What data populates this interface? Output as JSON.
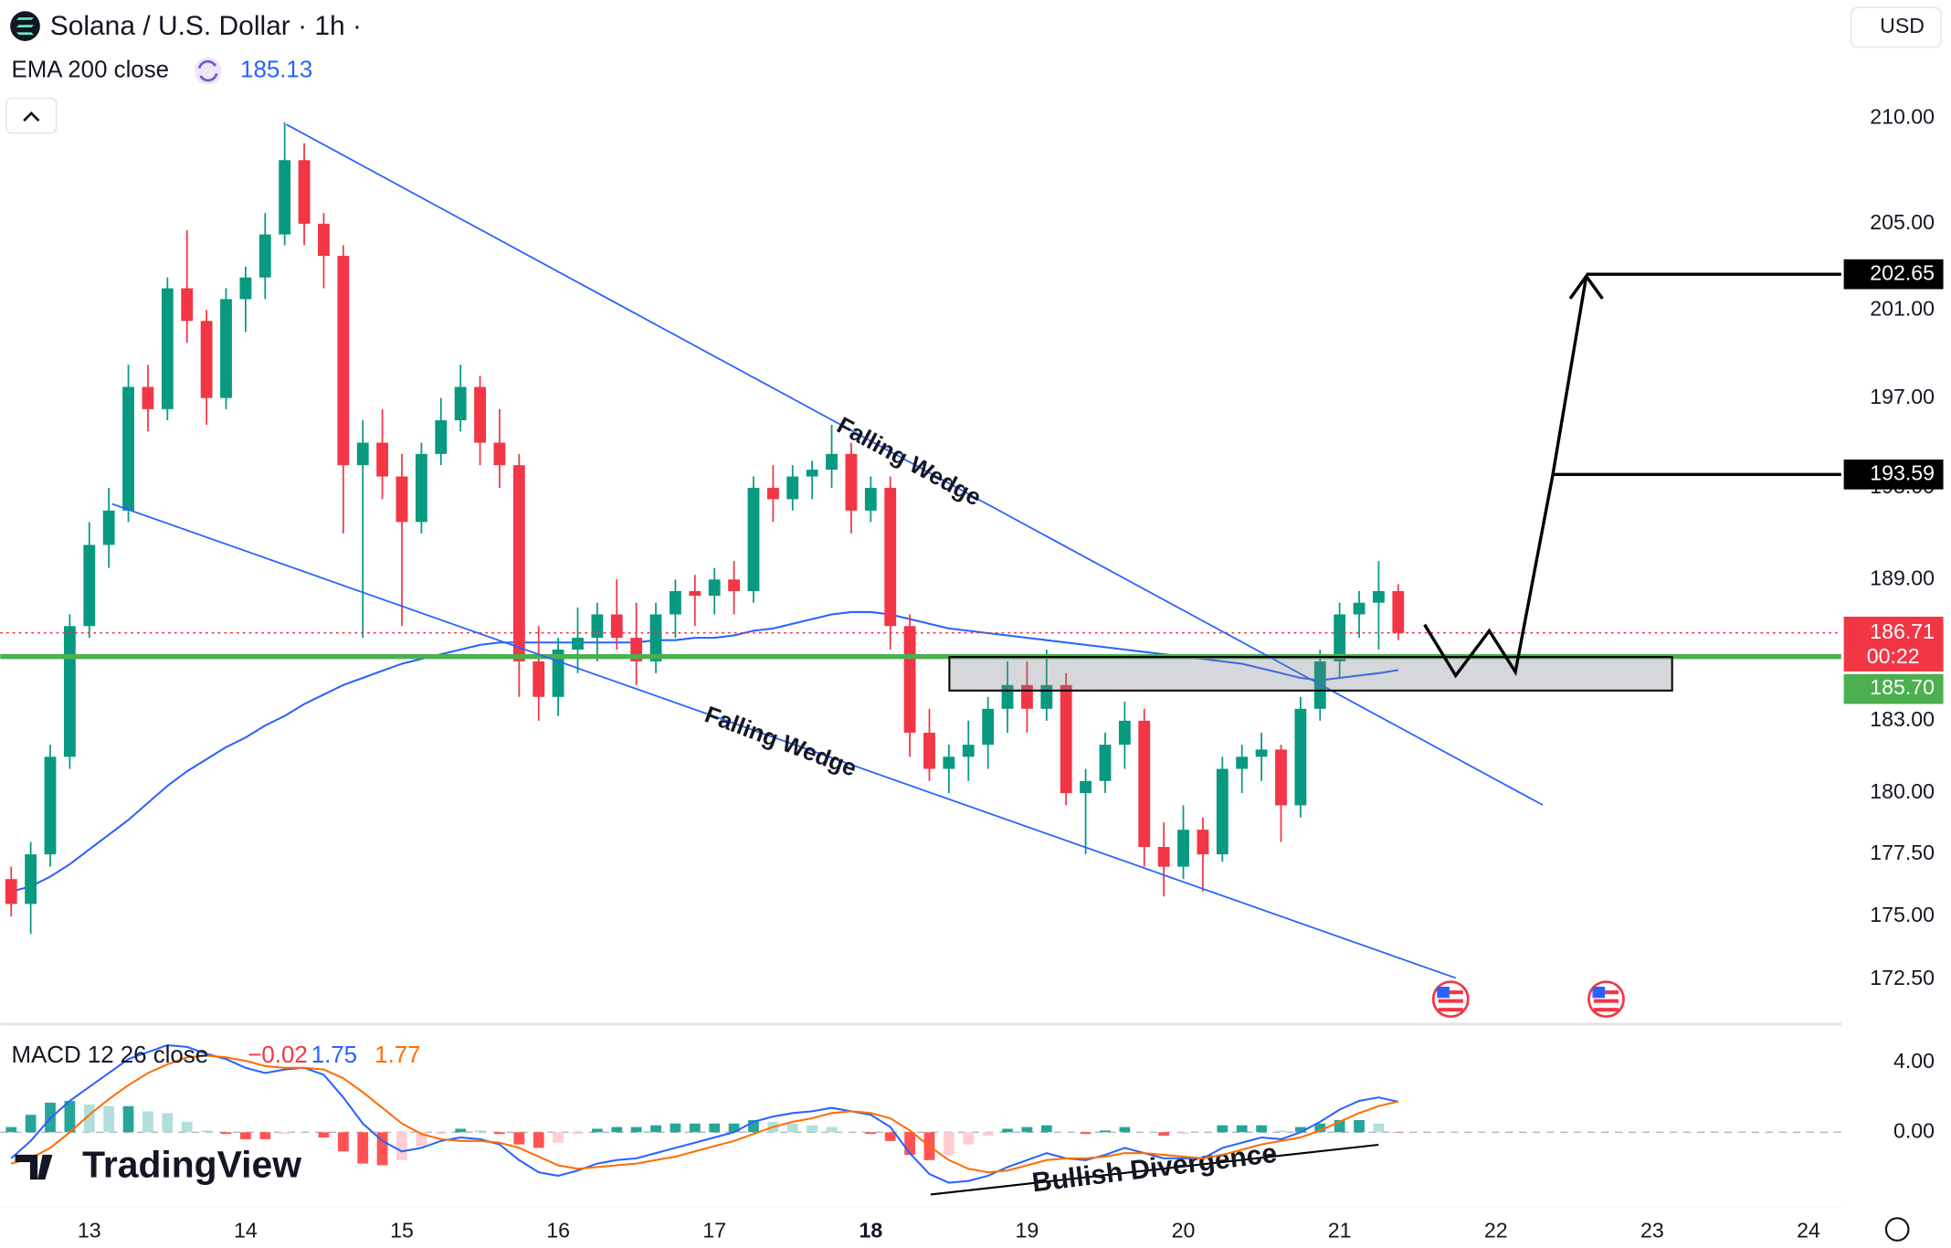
{
  "title": "Solana / U.S. Dollar · 1h ·",
  "currency": "USD",
  "watermark": "TradingView",
  "chart_data": [
    {
      "type": "candlestick",
      "log_scale": true,
      "grid": false,
      "up_color": "#089981",
      "down_color": "#f23645",
      "x": [
        12.5,
        12.625,
        12.75,
        12.875,
        13,
        13.125,
        13.25,
        13.375,
        13.5,
        13.625,
        13.75,
        13.875,
        14,
        14.125,
        14.25,
        14.375,
        14.5,
        14.625,
        14.75,
        14.875,
        15,
        15.125,
        15.25,
        15.375,
        15.5,
        15.625,
        15.75,
        15.875,
        16,
        16.125,
        16.25,
        16.375,
        16.5,
        16.625,
        16.75,
        16.875,
        17,
        17.125,
        17.25,
        17.375,
        17.5,
        17.625,
        17.75,
        17.875,
        18,
        18.125,
        18.25,
        18.375,
        18.5,
        18.625,
        18.75,
        18.875,
        19,
        19.125,
        19.25,
        19.375,
        19.5,
        19.625,
        19.75,
        19.875,
        20,
        20.125,
        20.25,
        20.375,
        20.5,
        20.625,
        20.75,
        20.875,
        21,
        21.125,
        21.25,
        21.375
      ],
      "values": [
        [
          176.5,
          177,
          175,
          175.5
        ],
        [
          175.5,
          178,
          174.3,
          177.5
        ],
        [
          177.5,
          182,
          177,
          181.5
        ],
        [
          181.5,
          187.5,
          181,
          187
        ],
        [
          187,
          191.5,
          186.5,
          190.5
        ],
        [
          190.5,
          193,
          189.5,
          192
        ],
        [
          192,
          198.5,
          191.5,
          197.5
        ],
        [
          197.5,
          198.5,
          195.5,
          196.5
        ],
        [
          196.5,
          202.5,
          196,
          202
        ],
        [
          202,
          204.7,
          199.5,
          200.5
        ],
        [
          200.5,
          201,
          195.8,
          197
        ],
        [
          197,
          202,
          196.5,
          201.5
        ],
        [
          201.5,
          203,
          200,
          202.5
        ],
        [
          202.5,
          205.5,
          201.5,
          204.5
        ],
        [
          204.5,
          209.8,
          204,
          208
        ],
        [
          208,
          208.8,
          204,
          205
        ],
        [
          205,
          205.5,
          202,
          203.5
        ],
        [
          203.5,
          204,
          191,
          194
        ],
        [
          194,
          196,
          186.5,
          195
        ],
        [
          195,
          196.5,
          192.5,
          193.5
        ],
        [
          193.5,
          194.5,
          187,
          191.5
        ],
        [
          191.5,
          195,
          191,
          194.5
        ],
        [
          194.5,
          197,
          194,
          196
        ],
        [
          196,
          198.5,
          195.5,
          197.5
        ],
        [
          197.5,
          198,
          194,
          195
        ],
        [
          195,
          196.5,
          193,
          194
        ],
        [
          194,
          194.5,
          184,
          185.5
        ],
        [
          185.5,
          187,
          183,
          184
        ],
        [
          184,
          186.5,
          183.2,
          186
        ],
        [
          186,
          187.8,
          185,
          186.5
        ],
        [
          186.5,
          188,
          185.5,
          187.5
        ],
        [
          187.5,
          189,
          186,
          186.5
        ],
        [
          186.5,
          188,
          184.5,
          185.5
        ],
        [
          185.5,
          188,
          185,
          187.5
        ],
        [
          187.5,
          189,
          186.5,
          188.5
        ],
        [
          188.5,
          189.2,
          187,
          188.3
        ],
        [
          188.3,
          189.5,
          187.5,
          189
        ],
        [
          189,
          189.8,
          187.5,
          188.5
        ],
        [
          188.5,
          193.5,
          188,
          193
        ],
        [
          193,
          194,
          191.5,
          192.5
        ],
        [
          192.5,
          194,
          192,
          193.5
        ],
        [
          193.5,
          194.2,
          192.5,
          193.8
        ],
        [
          193.8,
          195.8,
          193,
          194.5
        ],
        [
          194.5,
          195,
          191,
          192
        ],
        [
          192,
          193.5,
          191.5,
          193
        ],
        [
          193,
          193.5,
          186,
          187
        ],
        [
          187,
          187.5,
          181.5,
          182.5
        ],
        [
          182.5,
          183.5,
          180.5,
          181
        ],
        [
          181,
          182,
          180,
          181.5
        ],
        [
          181.5,
          183,
          180.5,
          182
        ],
        [
          182,
          184,
          181,
          183.5
        ],
        [
          183.5,
          185.5,
          182.5,
          184.5
        ],
        [
          184.5,
          185.5,
          182.5,
          183.5
        ],
        [
          183.5,
          186,
          183,
          184.5
        ],
        [
          184.5,
          185,
          179.5,
          180
        ],
        [
          180,
          181,
          177.5,
          180.5
        ],
        [
          180.5,
          182.5,
          180,
          182
        ],
        [
          182,
          183.8,
          181,
          183
        ],
        [
          183,
          183.5,
          177,
          177.8
        ],
        [
          177.8,
          178.8,
          175.8,
          177
        ],
        [
          177,
          179.5,
          176.5,
          178.5
        ],
        [
          178.5,
          179,
          176,
          177.5
        ],
        [
          177.5,
          181.5,
          177.2,
          181
        ],
        [
          181,
          182,
          180,
          181.5
        ],
        [
          181.5,
          182.5,
          180.5,
          181.8
        ],
        [
          181.8,
          182,
          178,
          179.5
        ],
        [
          179.5,
          184,
          179,
          183.5
        ],
        [
          183.5,
          186,
          183,
          185.5
        ],
        [
          185.5,
          188,
          184.8,
          187.5
        ],
        [
          187.5,
          188.5,
          186.5,
          188
        ],
        [
          188,
          189.8,
          186,
          188.5
        ],
        [
          188.5,
          188.8,
          186.4,
          186.71
        ]
      ],
      "series": [
        {
          "name": "EMA 200 close",
          "color": "#2962ff",
          "values": [
            176.0,
            176.2,
            176.6,
            177.1,
            177.7,
            178.3,
            178.9,
            179.6,
            180.3,
            180.9,
            181.4,
            181.9,
            182.3,
            182.8,
            183.2,
            183.7,
            184.1,
            184.5,
            184.8,
            185.1,
            185.4,
            185.6,
            185.8,
            186.0,
            186.2,
            186.3,
            186.3,
            186.3,
            186.3,
            186.3,
            186.3,
            186.3,
            186.3,
            186.4,
            186.4,
            186.5,
            186.5,
            186.6,
            186.8,
            186.9,
            187.1,
            187.3,
            187.5,
            187.6,
            187.6,
            187.5,
            187.3,
            187.1,
            186.9,
            186.8,
            186.7,
            186.6,
            186.5,
            186.4,
            186.3,
            186.2,
            186.1,
            186.0,
            185.9,
            185.8,
            185.7,
            185.6,
            185.5,
            185.4,
            185.2,
            185.0,
            184.8,
            184.7,
            184.8,
            184.9,
            185.0,
            185.13
          ]
        }
      ],
      "xlim": [
        12.43,
        24.21
      ],
      "xticks": [
        13,
        14,
        15,
        16,
        17,
        18,
        19,
        20,
        21,
        22,
        23,
        24
      ],
      "ylim": [
        170.8,
        215.75
      ],
      "yticks": [
        {
          "value": 210,
          "label": "210.00"
        },
        {
          "value": 205,
          "label": "205.00"
        },
        {
          "value": 201,
          "label": "201.00"
        },
        {
          "value": 197,
          "label": "197.00"
        },
        {
          "value": 193,
          "label": "193.00"
        },
        {
          "value": 189,
          "label": "189.00"
        },
        {
          "value": 183,
          "label": "183.00"
        },
        {
          "value": 180,
          "label": "180.00"
        },
        {
          "value": 177.5,
          "label": "177.50"
        },
        {
          "value": 175,
          "label": "175.00"
        },
        {
          "value": 172.5,
          "label": "172.50"
        }
      ],
      "price_lines": [
        {
          "value": 185.7,
          "label": "185.70",
          "color": "#4caf50"
        },
        {
          "value": 202.65,
          "color": "#000000"
        },
        {
          "value": 193.59,
          "color": "#000000"
        }
      ],
      "countdown": "00:22",
      "annotations": [
        "Falling Wedge",
        "Falling Wedge"
      ]
    },
    {
      "type": "macd",
      "title": "MACD 12 26 close",
      "series": [
        {
          "colors": [
            "#26a69a",
            "#b2dfdb",
            "#ffcdd2",
            "#ff5252"
          ],
          "last_label": "−0.02",
          "values": [
            0.3,
            1.0,
            1.7,
            1.8,
            1.6,
            1.5,
            1.5,
            1.2,
            1.1,
            0.6,
            0.1,
            -0.1,
            -0.4,
            -0.4,
            -0.1,
            0.0,
            -0.3,
            -1.1,
            -1.8,
            -1.9,
            -1.6,
            -0.8,
            -0.1,
            0.2,
            0.1,
            -0.1,
            -0.7,
            -0.9,
            -0.6,
            -0.1,
            0.2,
            0.3,
            0.3,
            0.4,
            0.5,
            0.5,
            0.5,
            0.5,
            0.7,
            0.6,
            0.5,
            0.4,
            0.3,
            0.0,
            -0.1,
            -0.5,
            -1.3,
            -1.6,
            -1.3,
            -0.7,
            -0.2,
            0.2,
            0.3,
            0.4,
            0.0,
            -0.1,
            0.1,
            0.3,
            0.0,
            -0.2,
            -0.1,
            0.0,
            0.4,
            0.4,
            0.4,
            0.1,
            0.3,
            0.5,
            0.7,
            0.7,
            0.5,
            -0.02
          ]
        },
        {
          "color": "#2962ff",
          "values": [
            -1.5,
            -0.5,
            0.8,
            1.8,
            2.6,
            3.4,
            4.2,
            4.6,
            5.0,
            4.9,
            4.5,
            4.2,
            3.7,
            3.4,
            3.6,
            3.7,
            3.3,
            2.0,
            0.5,
            -0.5,
            -1.1,
            -0.9,
            -0.5,
            -0.3,
            -0.4,
            -0.7,
            -1.6,
            -2.3,
            -2.5,
            -2.2,
            -1.8,
            -1.6,
            -1.5,
            -1.2,
            -0.9,
            -0.6,
            -0.3,
            0,
            0.6,
            0.9,
            1.1,
            1.2,
            1.4,
            1.2,
            1.0,
            0.3,
            -1.2,
            -2.4,
            -2.9,
            -2.8,
            -2.5,
            -2.0,
            -1.6,
            -1.2,
            -1.5,
            -1.6,
            -1.3,
            -0.9,
            -1.2,
            -1.5,
            -1.5,
            -1.5,
            -0.9,
            -0.6,
            -0.3,
            -0.4,
            0.0,
            0.6,
            1.3,
            1.8,
            2.0,
            1.75
          ]
        },
        {
          "color": "#ff6d00",
          "values": [
            -1.8,
            -1.5,
            -0.9,
            0.0,
            1.0,
            1.9,
            2.7,
            3.4,
            3.9,
            4.3,
            4.4,
            4.3,
            4.1,
            3.8,
            3.7,
            3.7,
            3.6,
            3.1,
            2.3,
            1.4,
            0.5,
            -0.1,
            -0.4,
            -0.5,
            -0.5,
            -0.6,
            -0.9,
            -1.4,
            -1.9,
            -2.1,
            -2.0,
            -1.9,
            -1.8,
            -1.6,
            -1.4,
            -1.1,
            -0.8,
            -0.5,
            -0.1,
            0.3,
            0.6,
            0.8,
            1.1,
            1.2,
            1.1,
            0.8,
            0.1,
            -0.8,
            -1.6,
            -2.1,
            -2.3,
            -2.2,
            -1.9,
            -1.6,
            -1.5,
            -1.5,
            -1.4,
            -1.2,
            -1.2,
            -1.3,
            -1.4,
            -1.5,
            -1.3,
            -1.0,
            -0.7,
            -0.5,
            -0.3,
            0.1,
            0.6,
            1.1,
            1.5,
            1.77
          ]
        }
      ],
      "ylim": [
        -4.29,
        6.07
      ],
      "yticks": [
        {
          "value": 4,
          "label": "4.00"
        },
        {
          "value": 0,
          "label": "0.00"
        }
      ],
      "annotations": [
        "Bullish Divergence"
      ]
    }
  ]
}
